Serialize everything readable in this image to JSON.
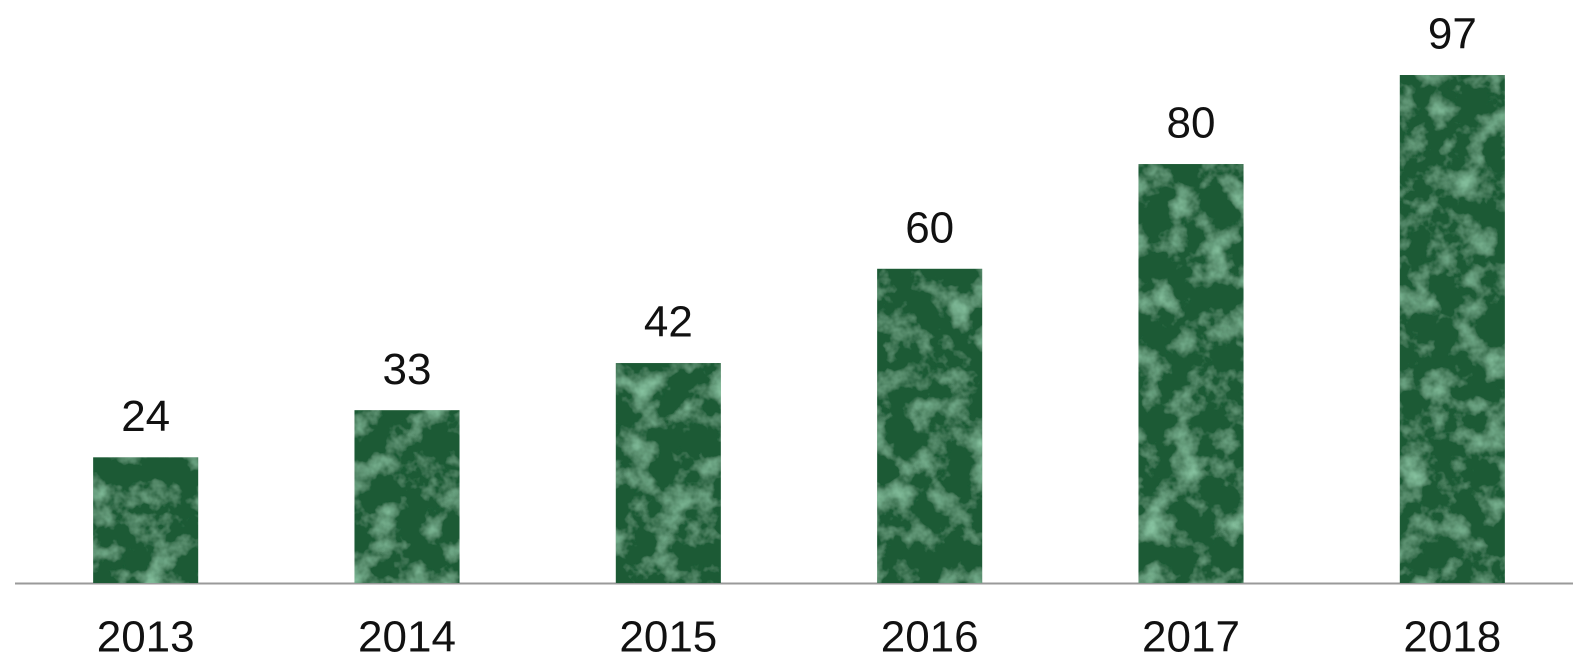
{
  "chart_data": {
    "type": "bar",
    "categories": [
      "2013",
      "2014",
      "2015",
      "2016",
      "2017",
      "2018"
    ],
    "values": [
      24,
      33,
      42,
      60,
      80,
      97
    ],
    "color": "#1d5a34",
    "ylim": [
      0,
      100
    ]
  }
}
